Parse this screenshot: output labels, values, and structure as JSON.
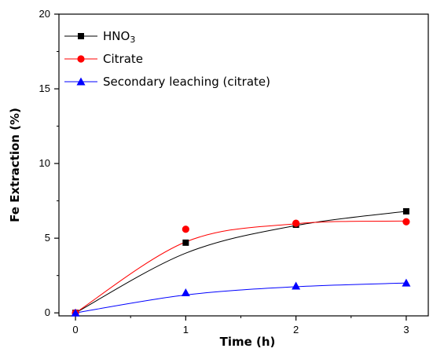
{
  "chart_data": {
    "type": "line",
    "xlabel": "Time (h)",
    "ylabel": "Fe Extraction (%)",
    "xlim": [
      -0.15,
      3.2
    ],
    "ylim": [
      -0.2,
      20
    ],
    "x_ticks": [
      0,
      1,
      2,
      3
    ],
    "y_ticks": [
      0,
      5,
      10,
      15,
      20
    ],
    "grid": false,
    "legend_position": "top-left",
    "series": [
      {
        "name": "HNO3",
        "legend_main": "HNO",
        "legend_sub": "3",
        "color": "#000000",
        "marker": "square",
        "x": [
          0,
          1,
          2,
          3
        ],
        "y": [
          0,
          4.7,
          5.9,
          6.8
        ],
        "fit": [
          0.0,
          4.0,
          5.85,
          6.8
        ]
      },
      {
        "name": "Citrate",
        "color": "#ff0000",
        "marker": "circle",
        "x": [
          0,
          1,
          2,
          3
        ],
        "y": [
          0,
          5.6,
          6.0,
          6.1
        ],
        "fit": [
          0.0,
          4.75,
          5.97,
          6.15
        ]
      },
      {
        "name": "Secondary leaching (citrate)",
        "color": "#0000ff",
        "marker": "triangle",
        "x": [
          0,
          1,
          2,
          3
        ],
        "y": [
          0,
          1.35,
          1.8,
          2.0
        ],
        "fit": [
          0.0,
          1.2,
          1.75,
          2.0
        ]
      }
    ]
  }
}
